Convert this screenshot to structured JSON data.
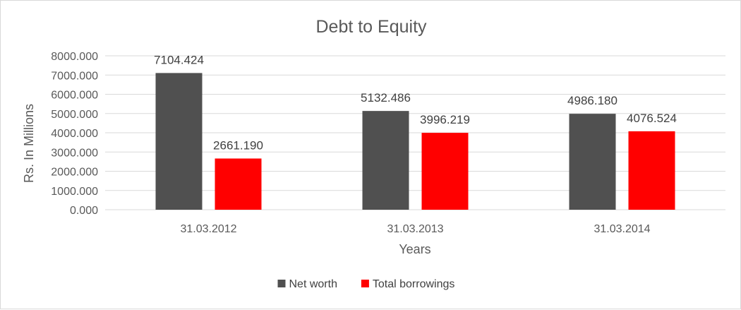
{
  "chart_data": {
    "type": "bar",
    "title": "Debt to Equity",
    "xlabel": "Years",
    "ylabel": "Rs. In Millions",
    "categories": [
      "31.03.2012",
      "31.03.2013",
      "31.03.2014"
    ],
    "series": [
      {
        "name": "Net worth",
        "color": "#505050",
        "values": [
          7104.424,
          5132.486,
          4986.18
        ],
        "labels": [
          "7104.424",
          "5132.486",
          "4986.180"
        ]
      },
      {
        "name": "Total borrowings",
        "color": "#ff0000",
        "values": [
          2661.19,
          3996.219,
          4076.524
        ],
        "labels": [
          "2661.190",
          "3996.219",
          "4076.524"
        ]
      }
    ],
    "ylim": [
      0,
      8000
    ],
    "yticks": [
      0,
      1000,
      2000,
      3000,
      4000,
      5000,
      6000,
      7000,
      8000
    ],
    "ytick_labels": [
      "0.000",
      "1000.000",
      "2000.000",
      "3000.000",
      "4000.000",
      "5000.000",
      "6000.000",
      "7000.000",
      "8000.000"
    ],
    "grid": true,
    "legend_position": "bottom"
  }
}
